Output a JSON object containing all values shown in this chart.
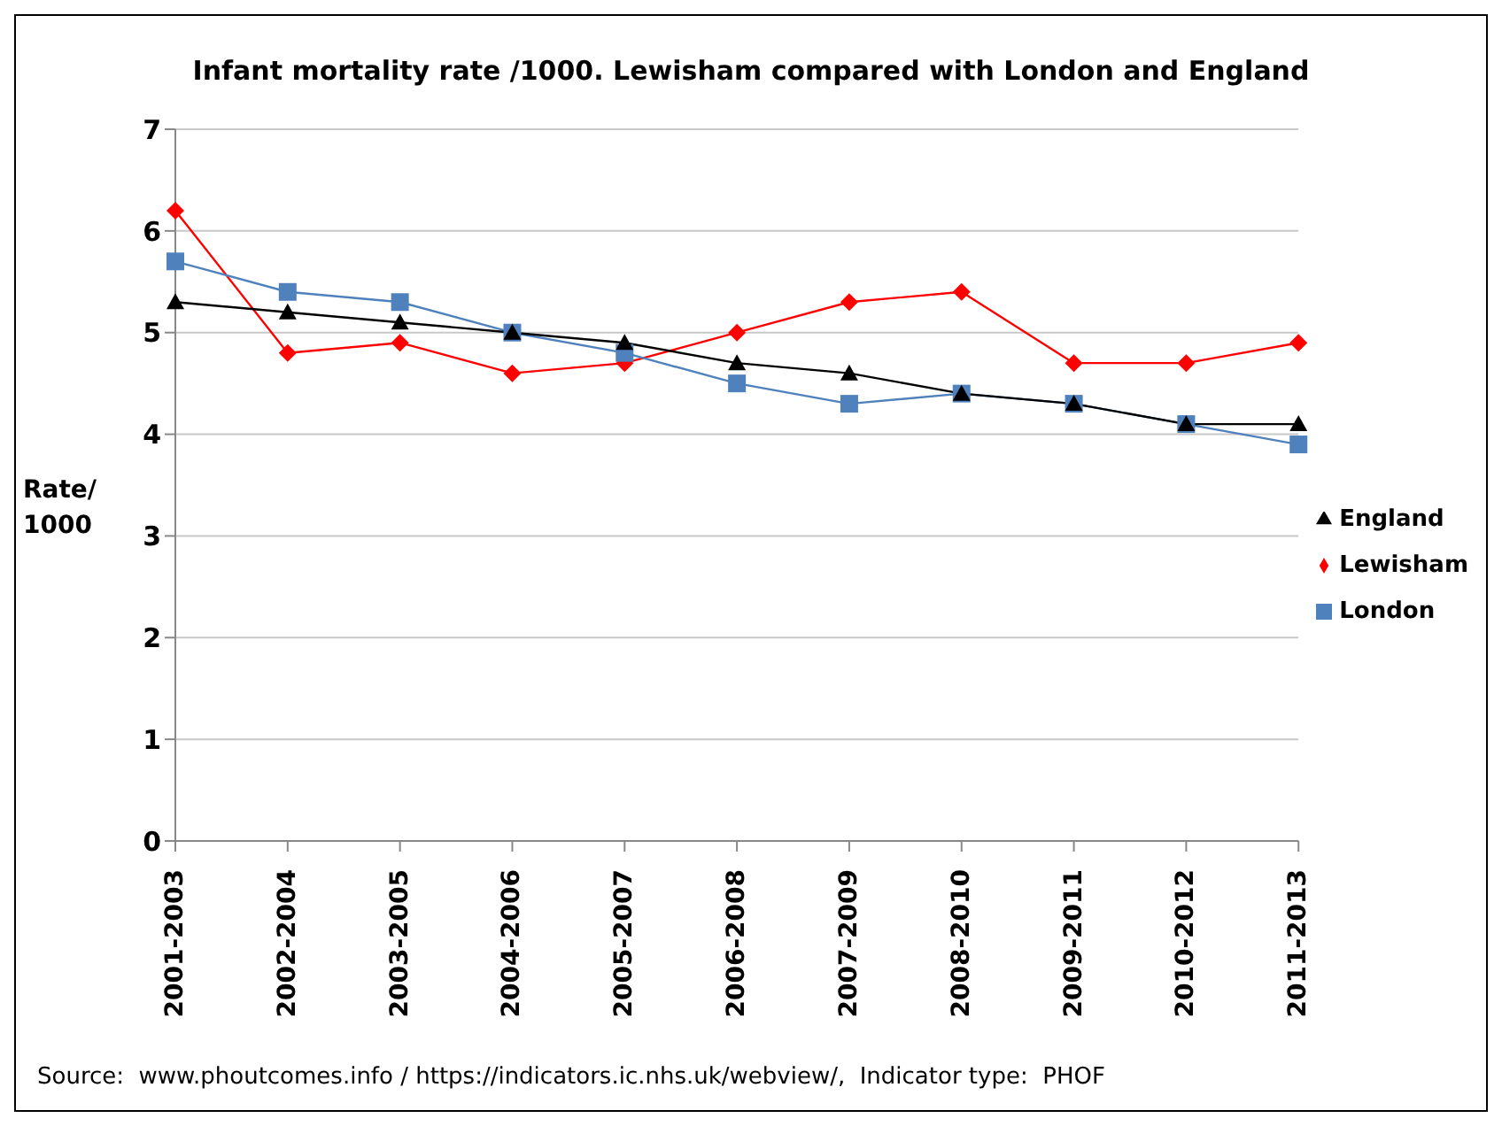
{
  "chart_data": {
    "type": "line",
    "title": "Infant mortality rate /1000. Lewisham compared with London and England",
    "ylabel": "Rate/\n1000",
    "categories": [
      "2001-2003",
      "2002-2004",
      "2003-2005",
      "2004-2006",
      "2005-2007",
      "2006-2008",
      "2007-2009",
      "2008-2010",
      "2009-2011",
      "2010-2012",
      "2011-2013"
    ],
    "series": [
      {
        "name": "Lewisham",
        "color": "#ff0000",
        "marker": "diamond",
        "values": [
          6.2,
          4.8,
          4.9,
          4.6,
          4.7,
          5.0,
          5.3,
          5.4,
          4.7,
          4.7,
          4.9
        ]
      },
      {
        "name": "London",
        "color": "#4f81bd",
        "marker": "square",
        "values": [
          5.7,
          5.4,
          5.3,
          5.0,
          4.8,
          4.5,
          4.3,
          4.4,
          4.3,
          4.1,
          3.9
        ]
      },
      {
        "name": "England",
        "color": "#000000",
        "marker": "triangle",
        "values": [
          5.3,
          5.2,
          5.1,
          5.0,
          4.9,
          4.7,
          4.6,
          4.4,
          4.3,
          4.1,
          4.1
        ]
      }
    ],
    "ylim": [
      0,
      7
    ],
    "yticks": [
      0,
      1,
      2,
      3,
      4,
      5,
      6,
      7
    ],
    "grid": "y",
    "legend": "right",
    "line_style": "solid",
    "annotations": [
      "Source:  www.phoutcomes.info / https://indicators.ic.nhs.uk/webview/,  Indicator type:  PHOF"
    ]
  }
}
